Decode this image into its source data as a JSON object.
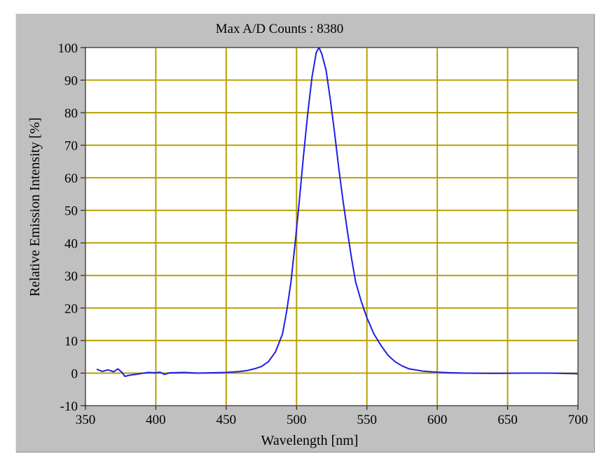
{
  "chart_data": {
    "type": "line",
    "title": "Max A/D Counts : 8380",
    "xlabel": "Wavelength [nm]",
    "ylabel": "Relative Emission Intensity [%]",
    "xlim": [
      350,
      700
    ],
    "ylim": [
      -10,
      100
    ],
    "xticks": [
      350,
      400,
      450,
      500,
      550,
      600,
      650,
      700
    ],
    "yticks": [
      -10,
      0,
      10,
      20,
      30,
      40,
      50,
      60,
      70,
      80,
      90,
      100
    ],
    "xtick_labels": [
      "350",
      "400",
      "450",
      "500",
      "550",
      "600",
      "650",
      "700"
    ],
    "ytick_labels": [
      "-10",
      "0",
      "10",
      "20",
      "30",
      "40",
      "50",
      "60",
      "70",
      "80",
      "90",
      "100"
    ],
    "grid": true,
    "series": [
      {
        "x": [
          358,
          362,
          366,
          370,
          373,
          376,
          378,
          382,
          386,
          390,
          395,
          400,
          403,
          406,
          410,
          420,
          430,
          440,
          450,
          460,
          465,
          470,
          475,
          480,
          485,
          490,
          493,
          496,
          499,
          502,
          505,
          508,
          511,
          514,
          516,
          518,
          521,
          524,
          527,
          530,
          533,
          536,
          539,
          542,
          546,
          550,
          555,
          560,
          565,
          570,
          575,
          580,
          590,
          600,
          610,
          620,
          640,
          660,
          680,
          700
        ],
        "y": [
          1.2,
          0.5,
          1.0,
          0.4,
          1.3,
          0.2,
          -1.0,
          -0.6,
          -0.4,
          -0.1,
          0.2,
          0.1,
          0.3,
          -0.4,
          0.1,
          0.2,
          0.0,
          0.1,
          0.2,
          0.5,
          0.8,
          1.3,
          2.0,
          3.5,
          6.5,
          12.0,
          19.0,
          28.0,
          40.0,
          53.0,
          67.0,
          80.0,
          91.0,
          98.5,
          100.0,
          98.0,
          93.0,
          84.0,
          74.0,
          63.0,
          53.0,
          44.0,
          35.5,
          28.0,
          22.0,
          17.0,
          12.0,
          8.5,
          5.5,
          3.5,
          2.2,
          1.3,
          0.6,
          0.3,
          0.1,
          0.0,
          -0.1,
          0.0,
          0.0,
          -0.2
        ]
      }
    ],
    "colors": {
      "background": "#c0c0c0",
      "plot_area": "#ffffff",
      "grid": "#b8a000",
      "line": "#1e1ee6"
    }
  }
}
